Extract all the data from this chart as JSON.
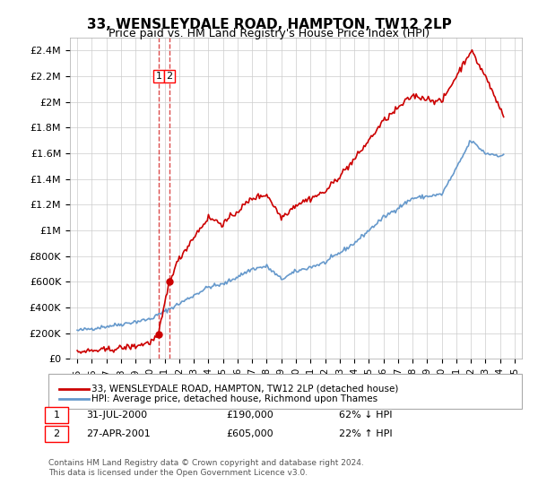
{
  "title": "33, WENSLEYDALE ROAD, HAMPTON, TW12 2LP",
  "subtitle": "Price paid vs. HM Land Registry's House Price Index (HPI)",
  "legend_line1": "33, WENSLEYDALE ROAD, HAMPTON, TW12 2LP (detached house)",
  "legend_line2": "HPI: Average price, detached house, Richmond upon Thames",
  "footnote": "Contains HM Land Registry data © Crown copyright and database right 2024.\nThis data is licensed under the Open Government Licence v3.0.",
  "transaction1_label": "1",
  "transaction1_date": "31-JUL-2000",
  "transaction1_price": "£190,000",
  "transaction1_hpi": "62% ↓ HPI",
  "transaction2_label": "2",
  "transaction2_date": "27-APR-2001",
  "transaction2_price": "£605,000",
  "transaction2_hpi": "22% ↑ HPI",
  "red_color": "#cc0000",
  "blue_color": "#6699cc",
  "grid_color": "#cccccc",
  "background_color": "#ffffff",
  "ylim": [
    0,
    2500000
  ],
  "yticks": [
    0,
    200000,
    400000,
    600000,
    800000,
    1000000,
    1200000,
    1400000,
    1600000,
    1800000,
    2000000,
    2200000,
    2400000
  ],
  "ytick_labels": [
    "£0",
    "£200K",
    "£400K",
    "£600K",
    "£800K",
    "£1M",
    "£1.2M",
    "£1.4M",
    "£1.6M",
    "£1.8M",
    "£2M",
    "£2.2M",
    "£2.4M"
  ],
  "xlim_start": 1994.5,
  "xlim_end": 2025.5,
  "transaction1_x": 2000.58,
  "transaction1_y": 190000,
  "transaction2_x": 2001.32,
  "transaction2_y": 605000,
  "hpi_years": [
    1995,
    1995.083,
    1995.167,
    1995.25,
    1995.333,
    1995.417,
    1995.5,
    1995.583,
    1995.667,
    1995.75,
    1995.833,
    1995.917,
    1996,
    1996.083,
    1996.167,
    1996.25,
    1996.333,
    1996.417,
    1996.5,
    1996.583,
    1996.667,
    1996.75,
    1996.833,
    1996.917,
    1997,
    1997.083,
    1997.167,
    1997.25,
    1997.333,
    1997.417,
    1997.5,
    1997.583,
    1997.667,
    1997.75,
    1997.833,
    1997.917,
    1998,
    1998.083,
    1998.167,
    1998.25,
    1998.333,
    1998.417,
    1998.5,
    1998.583,
    1998.667,
    1998.75,
    1998.833,
    1998.917,
    1999,
    1999.083,
    1999.167,
    1999.25,
    1999.333,
    1999.417,
    1999.5,
    1999.583,
    1999.667,
    1999.75,
    1999.833,
    1999.917,
    2000,
    2000.083,
    2000.167,
    2000.25,
    2000.333,
    2000.417,
    2000.5,
    2000.583,
    2000.667,
    2000.75,
    2000.833,
    2000.917,
    2001,
    2001.083,
    2001.167,
    2001.25,
    2001.333,
    2001.417,
    2001.5,
    2001.583,
    2001.667,
    2001.75,
    2001.833,
    2001.917,
    2002,
    2002.083,
    2002.167,
    2002.25,
    2002.333,
    2002.417,
    2002.5,
    2002.583,
    2002.667,
    2002.75,
    2002.833,
    2002.917,
    2003,
    2003.083,
    2003.167,
    2003.25,
    2003.333,
    2003.417,
    2003.5,
    2003.583,
    2003.667,
    2003.75,
    2003.833,
    2003.917,
    2004,
    2004.083,
    2004.167,
    2004.25,
    2004.333,
    2004.417,
    2004.5,
    2004.583,
    2004.667,
    2004.75,
    2004.833,
    2004.917,
    2005,
    2005.083,
    2005.167,
    2005.25,
    2005.333,
    2005.417,
    2005.5,
    2005.583,
    2005.667,
    2005.75,
    2005.833,
    2005.917,
    2006,
    2006.083,
    2006.167,
    2006.25,
    2006.333,
    2006.417,
    2006.5,
    2006.583,
    2006.667,
    2006.75,
    2006.833,
    2006.917,
    2007,
    2007.083,
    2007.167,
    2007.25,
    2007.333,
    2007.417,
    2007.5,
    2007.583,
    2007.667,
    2007.75,
    2007.833,
    2007.917,
    2008,
    2008.083,
    2008.167,
    2008.25,
    2008.333,
    2008.417,
    2008.5,
    2008.583,
    2008.667,
    2008.75,
    2008.833,
    2008.917,
    2009,
    2009.083,
    2009.167,
    2009.25,
    2009.333,
    2009.417,
    2009.5,
    2009.583,
    2009.667,
    2009.75,
    2009.833,
    2009.917,
    2010,
    2010.083,
    2010.167,
    2010.25,
    2010.333,
    2010.417,
    2010.5,
    2010.583,
    2010.667,
    2010.75,
    2010.833,
    2010.917,
    2011,
    2011.083,
    2011.167,
    2011.25,
    2011.333,
    2011.417,
    2011.5,
    2011.583,
    2011.667,
    2011.75,
    2011.833,
    2011.917,
    2012,
    2012.083,
    2012.167,
    2012.25,
    2012.333,
    2012.417,
    2012.5,
    2012.583,
    2012.667,
    2012.75,
    2012.833,
    2012.917,
    2013,
    2013.083,
    2013.167,
    2013.25,
    2013.333,
    2013.417,
    2013.5,
    2013.583,
    2013.667,
    2013.75,
    2013.833,
    2013.917,
    2014,
    2014.083,
    2014.167,
    2014.25,
    2014.333,
    2014.417,
    2014.5,
    2014.583,
    2014.667,
    2014.75,
    2014.833,
    2014.917,
    2015,
    2015.083,
    2015.167,
    2015.25,
    2015.333,
    2015.417,
    2015.5,
    2015.583,
    2015.667,
    2015.75,
    2015.833,
    2015.917,
    2016,
    2016.083,
    2016.167,
    2016.25,
    2016.333,
    2016.417,
    2016.5,
    2016.583,
    2016.667,
    2016.75,
    2016.833,
    2016.917,
    2017,
    2017.083,
    2017.167,
    2017.25,
    2017.333,
    2017.417,
    2017.5,
    2017.583,
    2017.667,
    2017.75,
    2017.833,
    2017.917,
    2018,
    2018.083,
    2018.167,
    2018.25,
    2018.333,
    2018.417,
    2018.5,
    2018.583,
    2018.667,
    2018.75,
    2018.833,
    2018.917,
    2019,
    2019.083,
    2019.167,
    2019.25,
    2019.333,
    2019.417,
    2019.5,
    2019.583,
    2019.667,
    2019.75,
    2019.833,
    2019.917,
    2020,
    2020.083,
    2020.167,
    2020.25,
    2020.333,
    2020.417,
    2020.5,
    2020.583,
    2020.667,
    2020.75,
    2020.833,
    2020.917,
    2021,
    2021.083,
    2021.167,
    2021.25,
    2021.333,
    2021.417,
    2021.5,
    2021.583,
    2021.667,
    2021.75,
    2021.833,
    2021.917,
    2022,
    2022.083,
    2022.167,
    2022.25,
    2022.333,
    2022.417,
    2022.5,
    2022.583,
    2022.667,
    2022.75,
    2022.833,
    2022.917,
    2023,
    2023.083,
    2023.167,
    2023.25,
    2023.333,
    2023.417,
    2023.5,
    2023.583,
    2023.667,
    2023.75,
    2023.833,
    2023.917,
    2024,
    2024.083,
    2024.167,
    2024.25
  ],
  "xtick_years": [
    1995,
    1996,
    1997,
    1998,
    1999,
    2000,
    2001,
    2002,
    2003,
    2004,
    2005,
    2006,
    2007,
    2008,
    2009,
    2010,
    2011,
    2012,
    2013,
    2014,
    2015,
    2016,
    2017,
    2018,
    2019,
    2020,
    2021,
    2022,
    2023,
    2024,
    2025
  ]
}
